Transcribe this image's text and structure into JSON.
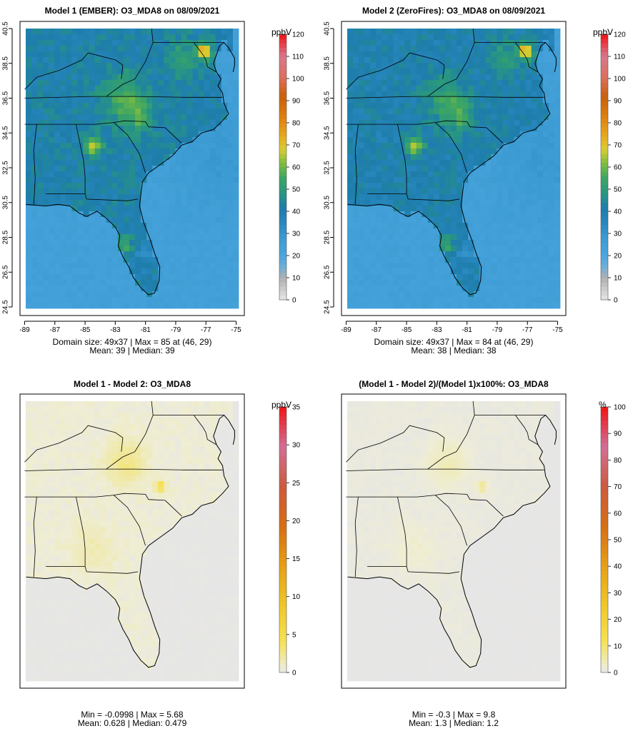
{
  "panels": [
    {
      "id": "p1",
      "title": "Model 1 (EMBER): O3_MDA8 on 08/09/2021",
      "stat_line1": "Domain size: 49x37 | Max = 85 at (46, 29)",
      "stat_line2": "Mean: 39 |  Median: 39",
      "unit": "ppbV",
      "colorbar_ticks": [
        "0",
        "10",
        "20",
        "30",
        "40",
        "50",
        "60",
        "70",
        "80",
        "90",
        "100",
        "110",
        "120"
      ],
      "colorbar_max": 120,
      "scheme": "conc",
      "show_axes": true
    },
    {
      "id": "p2",
      "title": "Model 2 (ZeroFires): O3_MDA8 on 08/09/2021",
      "stat_line1": "Domain size: 49x37 | Max = 84 at (46, 29)",
      "stat_line2": "Mean: 38 |  Median: 38",
      "unit": "ppbV",
      "colorbar_ticks": [
        "0",
        "10",
        "20",
        "30",
        "40",
        "50",
        "60",
        "70",
        "80",
        "90",
        "100",
        "110",
        "120"
      ],
      "colorbar_max": 120,
      "scheme": "conc",
      "show_axes": true
    },
    {
      "id": "p3",
      "title": "Model 1 - Model 2: O3_MDA8",
      "stat_line1": "Min = -0.0998 | Max = 5.68",
      "stat_line2": "Mean: 0.628 |  Median: 0.479",
      "unit": "ppbV",
      "colorbar_ticks": [
        "0",
        "5",
        "10",
        "15",
        "20",
        "25",
        "30",
        "35"
      ],
      "colorbar_max": 35,
      "scheme": "diff",
      "show_axes": false
    },
    {
      "id": "p4",
      "title": "(Model 1 - Model 2)/(Model 1)x100%: O3_MDA8",
      "stat_line1": "Min = -0.3 | Max = 9.8",
      "stat_line2": "Mean: 1.3 |  Median: 1.2",
      "unit": "%",
      "colorbar_ticks": [
        "0",
        "10",
        "20",
        "30",
        "40",
        "50",
        "60",
        "70",
        "80",
        "90",
        "100"
      ],
      "colorbar_max": 100,
      "scheme": "diff",
      "show_axes": false
    }
  ],
  "axes": {
    "x_ticks": [
      "-89",
      "-87",
      "-85",
      "-83",
      "-81",
      "-79",
      "-77",
      "-75"
    ],
    "y_ticks": [
      "24.5",
      "26.5",
      "28.5",
      "30.5",
      "32.5",
      "34.5",
      "36.5",
      "38.5",
      "40.5"
    ]
  },
  "colors": {
    "ocean": "#4aa8de",
    "land_base": "#2f8fbf",
    "land_green": "#3aa07a",
    "hot_yellow": "#d8c630",
    "hot_orange": "#e08a10",
    "diff_bg": "#e6e6e6",
    "diff_land": "#efeed4",
    "diff_hot": "#efe39a"
  }
}
